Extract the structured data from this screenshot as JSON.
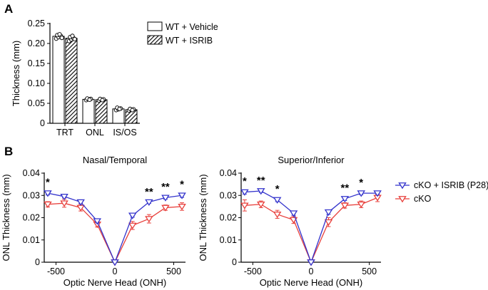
{
  "panels": {
    "a": {
      "letter": "A"
    },
    "b": {
      "letter": "B"
    }
  },
  "colors": {
    "vehicle_fill": "#ffffff",
    "isrib_hatch": "#000000",
    "isrib_treated": "#3333cc",
    "untreated": "#e8403c",
    "axis": "#000000"
  },
  "chart_data": [
    {
      "id": "bar_thickness",
      "type": "bar",
      "title": "",
      "xlabel": "",
      "ylabel": "Thickness (mm)",
      "ylim": [
        0,
        0.25
      ],
      "yticks": [
        0,
        0.05,
        0.1,
        0.15,
        0.2,
        0.25
      ],
      "ytick_labels": [
        "0",
        "0.05",
        "0.10",
        "0.15",
        "0.20",
        "0.25"
      ],
      "categories": [
        "TRT",
        "ONL",
        "IS/OS"
      ],
      "legend_position": "top-right",
      "series": [
        {
          "name": "WT + Vehicle",
          "style": "open",
          "values": [
            0.218,
            0.06,
            0.036
          ],
          "errors": [
            0.004,
            0.002,
            0.003
          ],
          "points": [
            [
              0.212,
              0.216,
              0.219,
              0.221,
              0.223,
              0.214
            ],
            [
              0.058,
              0.06,
              0.061,
              0.062,
              0.059
            ],
            [
              0.033,
              0.035,
              0.037,
              0.039,
              0.036
            ]
          ]
        },
        {
          "name": "WT + ISRIB",
          "style": "hatched",
          "values": [
            0.213,
            0.059,
            0.034
          ],
          "errors": [
            0.005,
            0.002,
            0.002
          ],
          "points": [
            [
              0.206,
              0.21,
              0.213,
              0.216,
              0.219,
              0.211
            ],
            [
              0.057,
              0.059,
              0.06,
              0.061,
              0.058
            ],
            [
              0.032,
              0.034,
              0.035,
              0.036,
              0.033
            ]
          ]
        }
      ]
    },
    {
      "id": "nasal_temporal",
      "type": "line",
      "title": "Nasal/Temporal",
      "xlabel": "Optic Nerve Head (ONH)",
      "ylabel": "ONL Thickness (mm)",
      "xlim": [
        -600,
        600
      ],
      "ylim": [
        0,
        0.04
      ],
      "xticks": [
        -500,
        0,
        500
      ],
      "xtick_labels": [
        "-500",
        "0",
        "500"
      ],
      "yticks": [
        0,
        0.01,
        0.02,
        0.03,
        0.04
      ],
      "ytick_labels": [
        "0",
        "0.01",
        "0.02",
        "0.03",
        "0.04"
      ],
      "x": [
        -570,
        -430,
        -290,
        -150,
        0,
        150,
        290,
        430,
        570
      ],
      "series": [
        {
          "name": "cKO + ISRIB (P28)",
          "color": "#3333cc",
          "values": [
            0.031,
            0.0295,
            0.027,
            0.0185,
            0.0,
            0.021,
            0.027,
            0.029,
            0.03
          ],
          "errors": [
            0.0008,
            0.0006,
            0.0007,
            0.0008,
            0.0,
            0.0008,
            0.0006,
            0.0007,
            0.0009
          ]
        },
        {
          "name": "cKO",
          "color": "#e8403c",
          "values": [
            0.026,
            0.0265,
            0.0245,
            0.017,
            0.0,
            0.0165,
            0.0195,
            0.0245,
            0.025
          ],
          "errors": [
            0.0012,
            0.0018,
            0.0015,
            0.0012,
            0.0,
            0.0018,
            0.0019,
            0.0012,
            0.0017
          ]
        }
      ],
      "significance": [
        {
          "x": -570,
          "label": "*"
        },
        {
          "x": 290,
          "label": "**"
        },
        {
          "x": 430,
          "label": "**"
        },
        {
          "x": 570,
          "label": "*"
        }
      ]
    },
    {
      "id": "superior_inferior",
      "type": "line",
      "title": "Superior/Inferior",
      "xlabel": "Optic Nerve Head (ONH)",
      "ylabel": "ONL Thickness (mm)",
      "xlim": [
        -600,
        600
      ],
      "ylim": [
        0,
        0.04
      ],
      "xticks": [
        -500,
        0,
        500
      ],
      "xtick_labels": [
        "-500",
        "0",
        "500"
      ],
      "yticks": [
        0,
        0.01,
        0.02,
        0.03,
        0.04
      ],
      "ytick_labels": [
        "0",
        "0.01",
        "0.02",
        "0.03",
        "0.04"
      ],
      "x": [
        -570,
        -430,
        -290,
        -150,
        0,
        150,
        290,
        430,
        570
      ],
      "legend_position": "right",
      "series": [
        {
          "name": "cKO + ISRIB (P28)",
          "color": "#3333cc",
          "values": [
            0.0315,
            0.032,
            0.028,
            0.022,
            0.0,
            0.0225,
            0.0285,
            0.031,
            0.031
          ],
          "errors": [
            0.0009,
            0.0007,
            0.0008,
            0.0009,
            0.0,
            0.001,
            0.0008,
            0.0007,
            0.0006
          ]
        },
        {
          "name": "cKO",
          "color": "#e8403c",
          "values": [
            0.0255,
            0.026,
            0.0215,
            0.019,
            0.0,
            0.018,
            0.0255,
            0.026,
            0.029
          ],
          "errors": [
            0.0025,
            0.0015,
            0.0018,
            0.0016,
            0.0,
            0.002,
            0.0012,
            0.0015,
            0.0018
          ]
        }
      ],
      "significance": [
        {
          "x": -570,
          "label": "*"
        },
        {
          "x": -430,
          "label": "**"
        },
        {
          "x": -290,
          "label": "*"
        },
        {
          "x": 290,
          "label": "**"
        },
        {
          "x": 430,
          "label": "*"
        }
      ]
    }
  ]
}
